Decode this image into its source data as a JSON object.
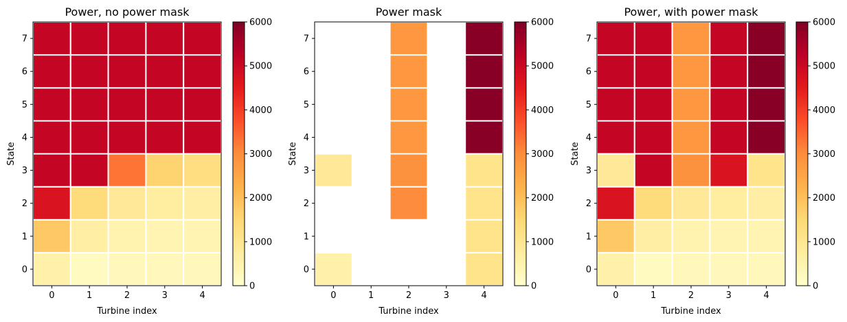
{
  "chart_data": [
    {
      "type": "heatmap",
      "title": "Power, no power mask",
      "xlabel": "Turbine index",
      "ylabel": "State",
      "x_ticks": [
        "0",
        "1",
        "2",
        "3",
        "4"
      ],
      "y_ticks": [
        "0",
        "1",
        "2",
        "3",
        "4",
        "5",
        "6",
        "7"
      ],
      "colormap": "YlOrRd",
      "vmin": 0,
      "vmax": 6000,
      "colorbar_ticks": [
        "0",
        "1000",
        "2000",
        "3000",
        "4000",
        "5000",
        "6000"
      ],
      "values": [
        [
          600,
          200,
          300,
          300,
          300
        ],
        [
          1800,
          700,
          500,
          450,
          450
        ],
        [
          4700,
          1400,
          900,
          750,
          700
        ],
        [
          5100,
          5100,
          3300,
          1600,
          1300
        ],
        [
          5100,
          5100,
          5100,
          5100,
          5100
        ],
        [
          5100,
          5100,
          5100,
          5100,
          5100
        ],
        [
          5100,
          5100,
          5100,
          5100,
          5100
        ],
        [
          5100,
          5100,
          5100,
          5100,
          5100
        ]
      ]
    },
    {
      "type": "heatmap",
      "title": "Power mask",
      "xlabel": "Turbine index",
      "ylabel": "State",
      "x_ticks": [
        "0",
        "1",
        "2",
        "3",
        "4"
      ],
      "y_ticks": [
        "0",
        "1",
        "2",
        "3",
        "4",
        "5",
        "6",
        "7"
      ],
      "colormap": "YlOrRd",
      "vmin": 0,
      "vmax": 6000,
      "colorbar_ticks": [
        "0",
        "1000",
        "2000",
        "3000",
        "4000",
        "5000",
        "6000"
      ],
      "values": [
        [
          600,
          null,
          null,
          null,
          1100
        ],
        [
          null,
          null,
          null,
          null,
          1100
        ],
        [
          null,
          null,
          3000,
          null,
          1100
        ],
        [
          900,
          null,
          2900,
          null,
          1100
        ],
        [
          null,
          null,
          2800,
          null,
          5900
        ],
        [
          null,
          null,
          2800,
          null,
          5900
        ],
        [
          null,
          null,
          2800,
          null,
          5900
        ],
        [
          null,
          null,
          2800,
          null,
          5900
        ]
      ]
    },
    {
      "type": "heatmap",
      "title": "Power, with power mask",
      "xlabel": "Turbine index",
      "ylabel": "State",
      "x_ticks": [
        "0",
        "1",
        "2",
        "3",
        "4"
      ],
      "y_ticks": [
        "0",
        "1",
        "2",
        "3",
        "4",
        "5",
        "6",
        "7"
      ],
      "colormap": "YlOrRd",
      "vmin": 0,
      "vmax": 6000,
      "colorbar_ticks": [
        "0",
        "1000",
        "2000",
        "3000",
        "4000",
        "5000",
        "6000"
      ],
      "values": [
        [
          600,
          200,
          300,
          300,
          300
        ],
        [
          1800,
          700,
          500,
          450,
          450
        ],
        [
          4700,
          1400,
          900,
          750,
          700
        ],
        [
          900,
          5100,
          2900,
          4700,
          1100
        ],
        [
          5100,
          5100,
          2800,
          5100,
          5900
        ],
        [
          5100,
          5100,
          2800,
          5100,
          5900
        ],
        [
          5100,
          5100,
          2800,
          5100,
          5900
        ],
        [
          5100,
          5100,
          2800,
          5100,
          5900
        ]
      ]
    }
  ]
}
